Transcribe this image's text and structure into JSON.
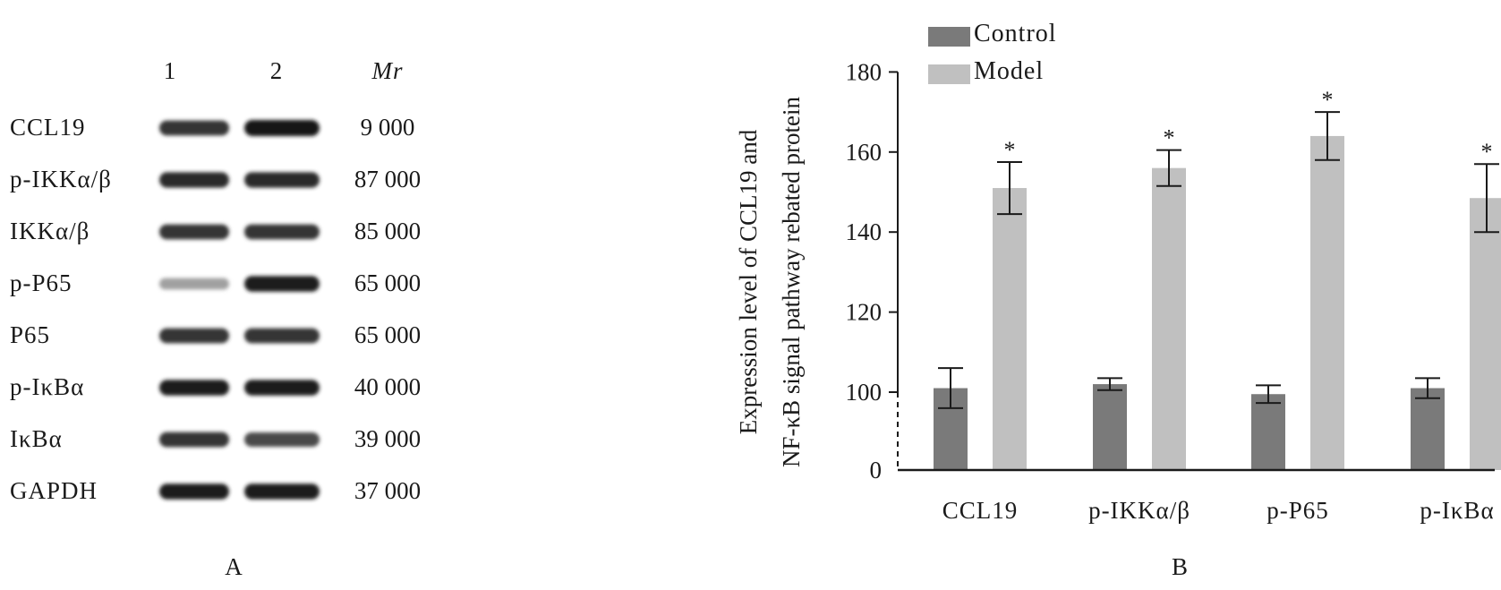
{
  "panel_a": {
    "lane_headers": [
      "1",
      "2"
    ],
    "mr_header": "Mr",
    "rows": [
      {
        "label": "CCL19",
        "mr": "9 000",
        "band1": 0.85,
        "band2": 1.0
      },
      {
        "label": "p-IKKα/β",
        "mr": "87 000",
        "band1": 0.9,
        "band2": 0.9
      },
      {
        "label": "IKKα/β",
        "mr": "85 000",
        "band1": 0.85,
        "band2": 0.85
      },
      {
        "label": "p-P65",
        "mr": "65 000",
        "band1": 0.35,
        "band2": 0.95
      },
      {
        "label": "P65",
        "mr": "65 000",
        "band1": 0.85,
        "band2": 0.85
      },
      {
        "label": "p-IκBα",
        "mr": "40 000",
        "band1": 0.95,
        "band2": 0.95
      },
      {
        "label": "IκBα",
        "mr": "39 000",
        "band1": 0.85,
        "band2": 0.75
      },
      {
        "label": "GAPDH",
        "mr": "37 000",
        "band1": 0.95,
        "band2": 0.95
      }
    ],
    "panel_label": "A"
  },
  "panel_b": {
    "panel_label": "B"
  },
  "chart_data": {
    "type": "bar",
    "categories": [
      "CCL19",
      "p-IKKα/β",
      "p-P65",
      "p-IκBα"
    ],
    "series": [
      {
        "name": "Control",
        "color": "#7a7a7a",
        "values": [
          101,
          102,
          99.5,
          101
        ],
        "errors": [
          5,
          1.5,
          2.2,
          2.5
        ]
      },
      {
        "name": "Model",
        "color": "#c0c0c0",
        "values": [
          151,
          156,
          164,
          148.5
        ],
        "errors": [
          6.5,
          4.5,
          6,
          8.5
        ]
      }
    ],
    "significance": [
      "*",
      "*",
      "*",
      "*"
    ],
    "ylabel_line1": "Expression level of CCL19 and",
    "ylabel_line2": "NF-κB signal pathway rebated protein",
    "yticks": [
      "0",
      "100",
      "120",
      "140",
      "160",
      "180"
    ],
    "axis_break": true,
    "legend_position": "top-left",
    "grid": false
  }
}
